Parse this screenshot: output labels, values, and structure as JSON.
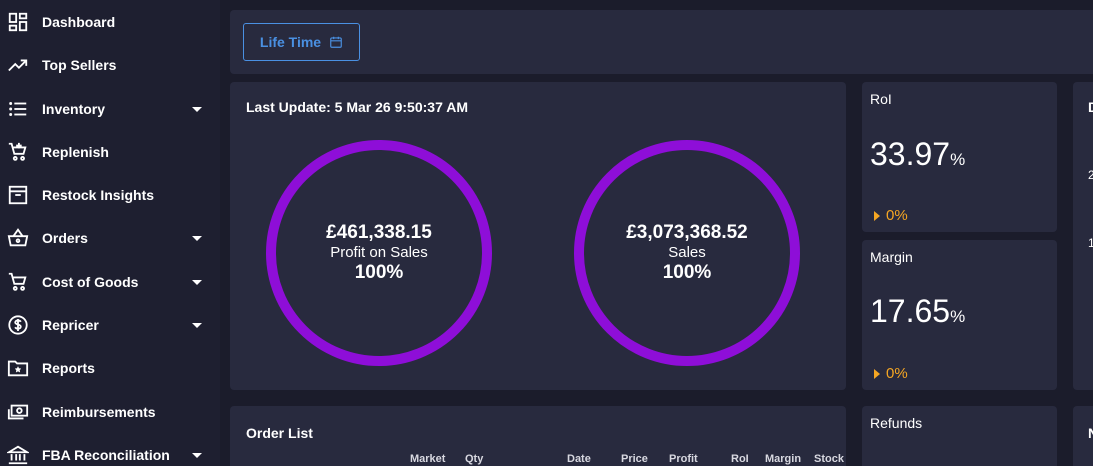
{
  "sidebar": {
    "items": [
      {
        "label": "Dashboard",
        "icon": "dashboard-icon",
        "has_caret": false
      },
      {
        "label": "Top Sellers",
        "icon": "trending-up-icon",
        "has_caret": false
      },
      {
        "label": "Inventory",
        "icon": "list-icon",
        "has_caret": true
      },
      {
        "label": "Replenish",
        "icon": "cart-plus-icon",
        "has_caret": false
      },
      {
        "label": "Restock Insights",
        "icon": "archive-icon",
        "has_caret": false
      },
      {
        "label": "Orders",
        "icon": "basket-icon",
        "has_caret": true
      },
      {
        "label": "Cost of Goods",
        "icon": "cart-icon",
        "has_caret": true
      },
      {
        "label": "Repricer",
        "icon": "dollar-circle-icon",
        "has_caret": true
      },
      {
        "label": "Reports",
        "icon": "folder-star-icon",
        "has_caret": false
      },
      {
        "label": "Reimbursements",
        "icon": "money-icon",
        "has_caret": false
      },
      {
        "label": "FBA Reconciliation",
        "icon": "bank-icon",
        "has_caret": true
      }
    ]
  },
  "toolbar": {
    "date_filter_label": "Life Time",
    "date_filter_icon": "calendar-icon"
  },
  "summary": {
    "last_update": "Last Update: 5 Mar 26 9:50:37 AM",
    "profit": {
      "value": "£461,338.15",
      "label": "Profit on Sales",
      "percent": "100%"
    },
    "sales": {
      "value": "£3,073,368.52",
      "label": "Sales",
      "percent": "100%"
    }
  },
  "metrics": {
    "roi": {
      "title": "RoI",
      "value": "33.97",
      "unit": "%",
      "change": "0%"
    },
    "margin": {
      "title": "Margin",
      "value": "17.65",
      "unit": "%",
      "change": "0%"
    },
    "refunds": {
      "title": "Refunds"
    }
  },
  "order_list": {
    "title": "Order List",
    "columns": [
      "Market",
      "Qty",
      "Date",
      "Price",
      "Profit",
      "RoI",
      "Margin",
      "Stock"
    ]
  },
  "peek": {
    "title_letter": "D",
    "tick_top": "2",
    "tick_bottom": "1",
    "bottom_letter": "N"
  },
  "colors": {
    "ring": "#8e0ed8",
    "accent_blue": "#4a90e2",
    "change_orange": "#f5a623",
    "card_bg": "#282a3e",
    "page_bg": "#1b1c2b"
  }
}
